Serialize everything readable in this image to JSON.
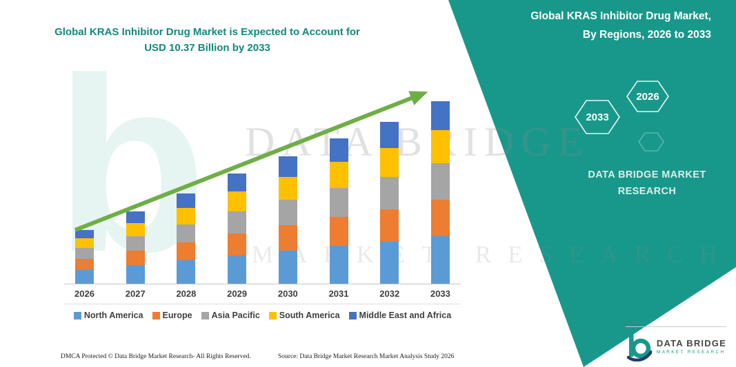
{
  "title": {
    "line1": "Global KRAS Inhibitor Drug Market is Expected to Account for",
    "line2": "USD 10.37 Billion by 2033"
  },
  "side_panel": {
    "heading_line1": "Global KRAS Inhibitor Drug Market,",
    "heading_line2": "By Regions, 2026 to 2033",
    "hexagons": [
      "2033",
      "2026"
    ],
    "brand_line1": "DATA BRIDGE MARKET",
    "brand_line2": "RESEARCH"
  },
  "watermark": {
    "line1": "DATA BRIDGE",
    "line2": "MARKET RESEARCH"
  },
  "chart_data": {
    "type": "bar",
    "stacked": true,
    "title": "Global KRAS Inhibitor Drug Market is Expected to Account for USD 10.37 Billion by 2033",
    "unit": "USD Billion",
    "categories": [
      "2026",
      "2027",
      "2028",
      "2029",
      "2030",
      "2031",
      "2032",
      "2033"
    ],
    "series": [
      {
        "name": "North America",
        "color": "#5B9BD5",
        "values": [
          0.79,
          1.07,
          1.34,
          1.62,
          1.88,
          2.15,
          2.4,
          2.7
        ]
      },
      {
        "name": "Europe",
        "color": "#ED7D31",
        "values": [
          0.61,
          0.82,
          1.03,
          1.24,
          1.45,
          1.65,
          1.85,
          2.07
        ]
      },
      {
        "name": "Asia Pacific",
        "color": "#A5A5A5",
        "values": [
          0.61,
          0.82,
          1.03,
          1.24,
          1.45,
          1.65,
          1.85,
          2.07
        ]
      },
      {
        "name": "South America",
        "color": "#FFC000",
        "values": [
          0.55,
          0.74,
          0.93,
          1.12,
          1.3,
          1.49,
          1.66,
          1.87
        ]
      },
      {
        "name": "Middle East and Africa",
        "color": "#4472C4",
        "values": [
          0.49,
          0.66,
          0.83,
          1.0,
          1.16,
          1.32,
          1.48,
          1.66
        ]
      }
    ],
    "estimated_totals": [
      3.05,
      4.11,
      5.17,
      6.22,
      7.24,
      8.26,
      9.23,
      10.37
    ],
    "ylim": [
      0,
      11
    ],
    "grid": false,
    "legend_position": "bottom",
    "trend_arrow": true
  },
  "logo": {
    "line1": "DATA BRIDGE",
    "line2": "MARKET RESEARCH"
  },
  "footer": {
    "dmca": "DMCA Protected © Data Bridge Market Research-  All Rights Reserved.",
    "source": "Source: Data Bridge Market Research  Market Analysis Study 2026"
  },
  "colors": {
    "band_teal": "#18988a",
    "title_teal": "#0e8a7d",
    "arrow_green": "#6fae45"
  }
}
